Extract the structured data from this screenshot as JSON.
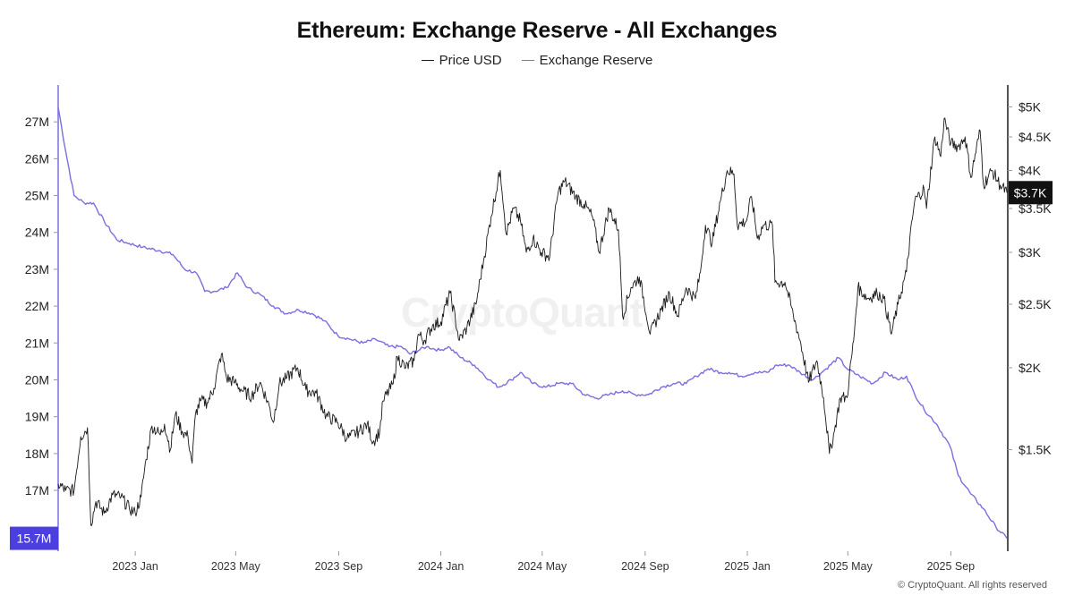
{
  "chart_data": {
    "type": "line",
    "title": "Ethereum: Exchange Reserve - All Exchanges",
    "legend": {
      "placement": "top-center"
    },
    "grid": false,
    "series": [
      {
        "name": "Price USD",
        "axis": "right",
        "color": "#1a1a1a",
        "points": [
          [
            "2022-10-01",
            1330
          ],
          [
            "2022-10-10",
            1300
          ],
          [
            "2022-10-20",
            1300
          ],
          [
            "2022-10-28",
            1570
          ],
          [
            "2022-11-05",
            1620
          ],
          [
            "2022-11-09",
            1150
          ],
          [
            "2022-11-15",
            1250
          ],
          [
            "2022-11-25",
            1200
          ],
          [
            "2022-12-05",
            1280
          ],
          [
            "2022-12-15",
            1270
          ],
          [
            "2022-12-25",
            1220
          ],
          [
            "2023-01-01",
            1200
          ],
          [
            "2023-01-08",
            1270
          ],
          [
            "2023-01-14",
            1450
          ],
          [
            "2023-01-21",
            1630
          ],
          [
            "2023-01-31",
            1580
          ],
          [
            "2023-02-05",
            1640
          ],
          [
            "2023-02-12",
            1500
          ],
          [
            "2023-02-18",
            1700
          ],
          [
            "2023-02-26",
            1600
          ],
          [
            "2023-03-05",
            1570
          ],
          [
            "2023-03-10",
            1430
          ],
          [
            "2023-03-14",
            1700
          ],
          [
            "2023-03-20",
            1780
          ],
          [
            "2023-03-28",
            1770
          ],
          [
            "2023-04-05",
            1860
          ],
          [
            "2023-04-14",
            2100
          ],
          [
            "2023-04-20",
            1930
          ],
          [
            "2023-04-30",
            1900
          ],
          [
            "2023-05-10",
            1840
          ],
          [
            "2023-05-20",
            1810
          ],
          [
            "2023-05-30",
            1900
          ],
          [
            "2023-06-10",
            1750
          ],
          [
            "2023-06-15",
            1650
          ],
          [
            "2023-06-22",
            1890
          ],
          [
            "2023-07-01",
            1930
          ],
          [
            "2023-07-14",
            2000
          ],
          [
            "2023-07-24",
            1850
          ],
          [
            "2023-08-05",
            1830
          ],
          [
            "2023-08-17",
            1690
          ],
          [
            "2023-08-31",
            1650
          ],
          [
            "2023-09-11",
            1560
          ],
          [
            "2023-09-25",
            1600
          ],
          [
            "2023-10-05",
            1640
          ],
          [
            "2023-10-12",
            1540
          ],
          [
            "2023-10-20",
            1600
          ],
          [
            "2023-10-24",
            1780
          ],
          [
            "2023-11-05",
            1890
          ],
          [
            "2023-11-10",
            2080
          ],
          [
            "2023-11-20",
            2000
          ],
          [
            "2023-11-30",
            2050
          ],
          [
            "2023-12-05",
            2250
          ],
          [
            "2023-12-12",
            2200
          ],
          [
            "2023-12-22",
            2320
          ],
          [
            "2024-01-01",
            2350
          ],
          [
            "2024-01-12",
            2600
          ],
          [
            "2024-01-23",
            2200
          ],
          [
            "2024-02-01",
            2300
          ],
          [
            "2024-02-12",
            2500
          ],
          [
            "2024-02-22",
            2960
          ],
          [
            "2024-03-01",
            3400
          ],
          [
            "2024-03-12",
            4000
          ],
          [
            "2024-03-19",
            3200
          ],
          [
            "2024-03-28",
            3500
          ],
          [
            "2024-04-05",
            3350
          ],
          [
            "2024-04-12",
            3000
          ],
          [
            "2024-04-20",
            3150
          ],
          [
            "2024-04-30",
            3000
          ],
          [
            "2024-05-10",
            2950
          ],
          [
            "2024-05-20",
            3700
          ],
          [
            "2024-05-28",
            3850
          ],
          [
            "2024-06-10",
            3650
          ],
          [
            "2024-06-20",
            3550
          ],
          [
            "2024-06-30",
            3400
          ],
          [
            "2024-07-08",
            3000
          ],
          [
            "2024-07-20",
            3500
          ],
          [
            "2024-07-31",
            3250
          ],
          [
            "2024-08-05",
            2400
          ],
          [
            "2024-08-15",
            2650
          ],
          [
            "2024-08-25",
            2750
          ],
          [
            "2024-09-07",
            2250
          ],
          [
            "2024-09-20",
            2450
          ],
          [
            "2024-09-30",
            2600
          ],
          [
            "2024-10-10",
            2400
          ],
          [
            "2024-10-20",
            2650
          ],
          [
            "2024-10-31",
            2550
          ],
          [
            "2024-11-06",
            2800
          ],
          [
            "2024-11-12",
            3300
          ],
          [
            "2024-11-20",
            3100
          ],
          [
            "2024-11-30",
            3600
          ],
          [
            "2024-12-08",
            4000
          ],
          [
            "2024-12-16",
            3950
          ],
          [
            "2024-12-20",
            3300
          ],
          [
            "2024-12-31",
            3350
          ],
          [
            "2025-01-06",
            3650
          ],
          [
            "2025-01-13",
            3150
          ],
          [
            "2025-01-20",
            3300
          ],
          [
            "2025-01-31",
            3300
          ],
          [
            "2025-02-03",
            2700
          ],
          [
            "2025-02-15",
            2700
          ],
          [
            "2025-02-25",
            2400
          ],
          [
            "2025-03-05",
            2200
          ],
          [
            "2025-03-15",
            1900
          ],
          [
            "2025-03-25",
            2050
          ],
          [
            "2025-04-02",
            1800
          ],
          [
            "2025-04-09",
            1480
          ],
          [
            "2025-04-15",
            1600
          ],
          [
            "2025-04-22",
            1800
          ],
          [
            "2025-04-30",
            1800
          ],
          [
            "2025-05-08",
            2200
          ],
          [
            "2025-05-13",
            2650
          ],
          [
            "2025-05-25",
            2550
          ],
          [
            "2025-06-05",
            2600
          ],
          [
            "2025-06-13",
            2550
          ],
          [
            "2025-06-22",
            2250
          ],
          [
            "2025-06-30",
            2500
          ],
          [
            "2025-07-10",
            2800
          ],
          [
            "2025-07-20",
            3600
          ],
          [
            "2025-07-31",
            3750
          ],
          [
            "2025-08-03",
            3500
          ],
          [
            "2025-08-13",
            4500
          ],
          [
            "2025-08-20",
            4200
          ],
          [
            "2025-08-24",
            4800
          ],
          [
            "2025-09-01",
            4400
          ],
          [
            "2025-09-10",
            4350
          ],
          [
            "2025-09-18",
            4500
          ],
          [
            "2025-09-25",
            3900
          ],
          [
            "2025-10-06",
            4600
          ],
          [
            "2025-10-10",
            3800
          ],
          [
            "2025-10-20",
            4000
          ],
          [
            "2025-10-30",
            3800
          ],
          [
            "2025-11-07",
            3700
          ]
        ]
      },
      {
        "name": "Exchange Reserve",
        "axis": "left",
        "color": "#7b6ee0",
        "points": [
          [
            "2022-10-01",
            27.4
          ],
          [
            "2022-10-10",
            26.2
          ],
          [
            "2022-10-20",
            25.0
          ],
          [
            "2022-11-01",
            24.8
          ],
          [
            "2022-11-12",
            24.8
          ],
          [
            "2022-11-25",
            24.3
          ],
          [
            "2022-12-10",
            23.8
          ],
          [
            "2022-12-25",
            23.7
          ],
          [
            "2023-01-10",
            23.6
          ],
          [
            "2023-01-31",
            23.5
          ],
          [
            "2023-02-15",
            23.4
          ],
          [
            "2023-03-01",
            23.0
          ],
          [
            "2023-03-15",
            22.9
          ],
          [
            "2023-03-25",
            22.4
          ],
          [
            "2023-04-05",
            22.4
          ],
          [
            "2023-04-20",
            22.5
          ],
          [
            "2023-05-03",
            22.9
          ],
          [
            "2023-05-15",
            22.5
          ],
          [
            "2023-05-31",
            22.3
          ],
          [
            "2023-06-15",
            22.0
          ],
          [
            "2023-06-30",
            21.8
          ],
          [
            "2023-07-15",
            21.9
          ],
          [
            "2023-07-31",
            21.8
          ],
          [
            "2023-08-15",
            21.6
          ],
          [
            "2023-08-31",
            21.2
          ],
          [
            "2023-09-15",
            21.1
          ],
          [
            "2023-09-30",
            21.0
          ],
          [
            "2023-10-15",
            21.1
          ],
          [
            "2023-10-31",
            20.9
          ],
          [
            "2023-11-15",
            20.9
          ],
          [
            "2023-11-25",
            20.7
          ],
          [
            "2023-12-15",
            20.9
          ],
          [
            "2023-12-31",
            20.8
          ],
          [
            "2024-01-10",
            20.9
          ],
          [
            "2024-01-25",
            20.6
          ],
          [
            "2024-02-10",
            20.4
          ],
          [
            "2024-02-28",
            20.0
          ],
          [
            "2024-03-10",
            19.8
          ],
          [
            "2024-03-25",
            20.0
          ],
          [
            "2024-04-05",
            20.2
          ],
          [
            "2024-04-20",
            19.9
          ],
          [
            "2024-05-05",
            19.8
          ],
          [
            "2024-05-20",
            19.9
          ],
          [
            "2024-06-05",
            19.9
          ],
          [
            "2024-06-20",
            19.6
          ],
          [
            "2024-07-05",
            19.5
          ],
          [
            "2024-07-20",
            19.6
          ],
          [
            "2024-08-05",
            19.7
          ],
          [
            "2024-08-20",
            19.6
          ],
          [
            "2024-09-05",
            19.6
          ],
          [
            "2024-09-20",
            19.8
          ],
          [
            "2024-10-05",
            19.9
          ],
          [
            "2024-10-20",
            19.9
          ],
          [
            "2024-11-01",
            20.1
          ],
          [
            "2024-11-15",
            20.3
          ],
          [
            "2024-11-30",
            20.2
          ],
          [
            "2024-12-10",
            20.2
          ],
          [
            "2024-12-25",
            20.1
          ],
          [
            "2025-01-10",
            20.2
          ],
          [
            "2025-01-25",
            20.2
          ],
          [
            "2025-02-05",
            20.4
          ],
          [
            "2025-02-20",
            20.4
          ],
          [
            "2025-03-05",
            20.2
          ],
          [
            "2025-03-20",
            20.0
          ],
          [
            "2025-04-05",
            20.3
          ],
          [
            "2025-04-20",
            20.6
          ],
          [
            "2025-04-30",
            20.3
          ],
          [
            "2025-05-15",
            20.1
          ],
          [
            "2025-05-31",
            19.9
          ],
          [
            "2025-06-15",
            20.2
          ],
          [
            "2025-06-30",
            20.0
          ],
          [
            "2025-07-10",
            20.1
          ],
          [
            "2025-07-20",
            19.6
          ],
          [
            "2025-07-31",
            19.2
          ],
          [
            "2025-08-15",
            18.8
          ],
          [
            "2025-08-31",
            18.2
          ],
          [
            "2025-09-10",
            17.4
          ],
          [
            "2025-09-25",
            16.9
          ],
          [
            "2025-10-10",
            16.5
          ],
          [
            "2025-10-25",
            16.0
          ],
          [
            "2025-11-07",
            15.7
          ]
        ]
      }
    ],
    "x_axis": {
      "type": "date",
      "range": [
        "2022-10-01",
        "2025-11-08"
      ],
      "ticks": [
        {
          "date": "2023-01-01",
          "label": "2023 Jan"
        },
        {
          "date": "2023-05-01",
          "label": "2023 May"
        },
        {
          "date": "2023-09-01",
          "label": "2023 Sep"
        },
        {
          "date": "2024-01-01",
          "label": "2024 Jan"
        },
        {
          "date": "2024-05-01",
          "label": "2024 May"
        },
        {
          "date": "2024-09-01",
          "label": "2024 Sep"
        },
        {
          "date": "2025-01-01",
          "label": "2025 Jan"
        },
        {
          "date": "2025-05-01",
          "label": "2025 May"
        },
        {
          "date": "2025-09-01",
          "label": "2025 Sep"
        }
      ]
    },
    "y_left": {
      "label": "",
      "range": [
        15.35,
        28.0
      ],
      "color": "#7b6ee0",
      "ticks": [
        {
          "value": 27,
          "label": "27M"
        },
        {
          "value": 26,
          "label": "26M"
        },
        {
          "value": 25,
          "label": "25M"
        },
        {
          "value": 24,
          "label": "24M"
        },
        {
          "value": 23,
          "label": "23M"
        },
        {
          "value": 22,
          "label": "22M"
        },
        {
          "value": 21,
          "label": "21M"
        },
        {
          "value": 20,
          "label": "20M"
        },
        {
          "value": 19,
          "label": "19M"
        },
        {
          "value": 18,
          "label": "18M"
        },
        {
          "value": 17,
          "label": "17M"
        }
      ],
      "current": {
        "value": 15.7,
        "label": "15.7M",
        "color": "#4c3fe0"
      }
    },
    "y_right": {
      "label": "",
      "scale": "log",
      "range": [
        1050,
        5400
      ],
      "color": "#1a1a1a",
      "ticks": [
        {
          "value": 5000,
          "label": "$5K"
        },
        {
          "value": 4500,
          "label": "$4.5K"
        },
        {
          "value": 4000,
          "label": "$4K"
        },
        {
          "value": 3500,
          "label": "$3.5K"
        },
        {
          "value": 3000,
          "label": "$3K"
        },
        {
          "value": 2500,
          "label": "$2.5K"
        },
        {
          "value": 2000,
          "label": "$2K"
        },
        {
          "value": 1500,
          "label": "$1.5K"
        }
      ],
      "current": {
        "value": 3700,
        "label": "$3.7K",
        "color": "#111111"
      }
    }
  },
  "watermark": "CryptoQuant",
  "copyright": "© CryptoQuant. All rights reserved"
}
